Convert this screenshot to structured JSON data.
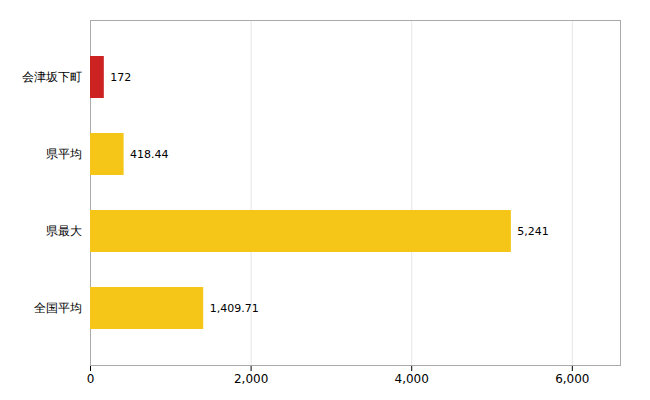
{
  "chart_data": {
    "type": "bar",
    "orientation": "horizontal",
    "categories": [
      "会津坂下町",
      "県平均",
      "県最大",
      "全国平均"
    ],
    "values": [
      172,
      418.44,
      5241,
      1409.71
    ],
    "value_labels": [
      "172",
      "418.44",
      "5,241",
      "1,409.71"
    ],
    "colors": [
      "#cc2222",
      "#f5c518",
      "#f5c518",
      "#f5c518"
    ],
    "xlim": [
      0,
      6600
    ],
    "xticks": [
      0,
      {
        "value": 2000,
        "label": "2,000"
      },
      {
        "value": 4000,
        "label": "4,000"
      },
      {
        "value": 6000,
        "label": "6,000"
      }
    ],
    "grid": true,
    "data_labels": true
  }
}
